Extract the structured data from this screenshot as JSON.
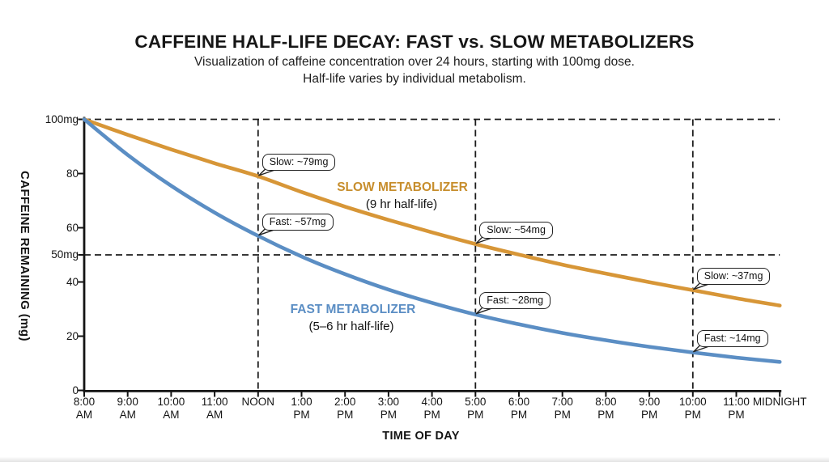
{
  "header": {
    "title": "CAFFEINE HALF-LIFE DECAY: FAST vs. SLOW METABOLIZERS",
    "subtitle_line1": "Visualization of caffeine concentration over 24 hours, starting with 100mg dose.",
    "subtitle_line2": "Half-life varies by individual metabolism."
  },
  "axes": {
    "y_title": "CAFFEINE REMAINING (mg)",
    "x_title": "TIME OF DAY"
  },
  "colors": {
    "slow_line": "#D79637",
    "fast_line": "#5B8EC4",
    "slow_label_text": "#C78E2D",
    "fast_label_text": "#5B8EC4",
    "axis": "#141414",
    "dashed_reference": "#1c1c1c",
    "callout_border": "#222222",
    "callout_bg": "#ffffff"
  },
  "chart_data": {
    "type": "line",
    "title": "CAFFEINE HALF-LIFE DECAY: FAST vs. SLOW METABOLIZERS",
    "xlabel": "TIME OF DAY",
    "ylabel": "CAFFEINE REMAINING (mg)",
    "ylim": [
      0,
      100
    ],
    "x_unit": "hours after 8:00 AM",
    "x": [
      0,
      1,
      2,
      3,
      4,
      5,
      6,
      7,
      8,
      9,
      10,
      11,
      12,
      13,
      14,
      15,
      16
    ],
    "x_tick_labels": [
      "8:00\nAM",
      "9:00\nAM",
      "10:00\nAM",
      "11:00\nAM",
      "NOON",
      "1:00\nPM",
      "2:00\nPM",
      "3:00\nPM",
      "4:00\nPM",
      "5:00\nPM",
      "6:00\nPM",
      "7:00\nPM",
      "8:00\nPM",
      "9:00\nPM",
      "10:00\nPM",
      "11:00\nPM",
      "MIDNIGHT"
    ],
    "y_ticks": [
      {
        "value": 100,
        "label": "100mg"
      },
      {
        "value": 80,
        "label": "80"
      },
      {
        "value": 60,
        "label": "60"
      },
      {
        "value": 50,
        "label": "50mg"
      },
      {
        "value": 40,
        "label": "40"
      },
      {
        "value": 20,
        "label": "20"
      },
      {
        "value": 0,
        "label": "0"
      }
    ],
    "series": [
      {
        "name": "SLOW METABOLIZER",
        "sublabel": "(9 hr half-life)",
        "color": "#D79637",
        "values": [
          100,
          94.3,
          88.9,
          83.8,
          79,
          73.2,
          67.8,
          62.9,
          58.3,
          54,
          50.1,
          46.4,
          43.1,
          39.9,
          37,
          34,
          31.3
        ]
      },
      {
        "name": "FAST METABOLIZER",
        "sublabel": "(5–6 hr half-life)",
        "color": "#5B8EC4",
        "values": [
          100,
          86.9,
          75.5,
          65.6,
          57,
          49.4,
          42.9,
          37.2,
          32.3,
          28,
          24.4,
          21.2,
          18.5,
          16.1,
          14,
          12.1,
          10.5
        ]
      }
    ],
    "reference_lines": {
      "horizontal_mg": [
        100,
        50
      ],
      "vertical_hours": [
        4,
        9,
        14
      ]
    },
    "annotations": [
      {
        "text": "Slow: ~79mg",
        "hour": 4,
        "value": 79
      },
      {
        "text": "Fast: ~57mg",
        "hour": 4,
        "value": 57
      },
      {
        "text": "Slow: ~54mg",
        "hour": 9,
        "value": 54
      },
      {
        "text": "Fast: ~28mg",
        "hour": 9,
        "value": 28
      },
      {
        "text": "Slow: ~37mg",
        "hour": 14,
        "value": 37
      },
      {
        "text": "Fast: ~14mg",
        "hour": 14,
        "value": 14
      }
    ],
    "grid": false,
    "legend_position": "labels-on-chart"
  }
}
